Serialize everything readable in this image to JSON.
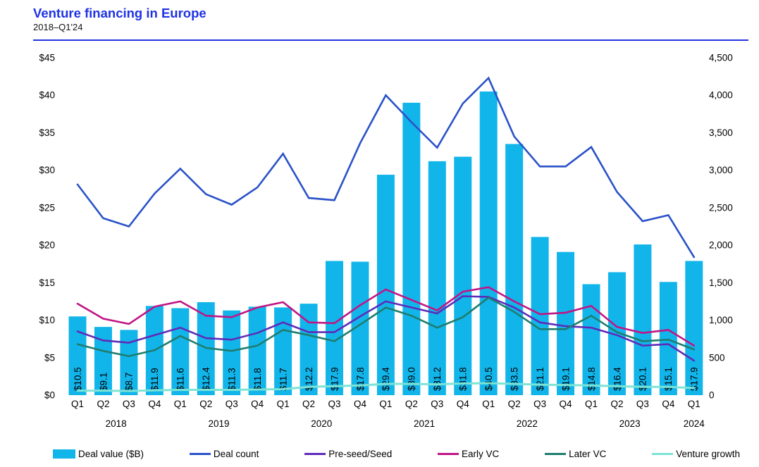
{
  "header": {
    "title": "Venture financing in Europe",
    "subtitle": "2018–Q1'24"
  },
  "colors": {
    "title_blue": "#1F32E3",
    "rule_blue": "#2135E0",
    "bar_cyan": "#12B5EA",
    "deal_count_blue": "#2A52C8",
    "preseed_purple": "#5E2BB8",
    "early_vc_magenta": "#C01585",
    "later_vc_teal": "#1F7D6F",
    "venture_growth_aqua": "#7CE3D5",
    "text_black": "#000000"
  },
  "chart_data": {
    "type": "bar",
    "subtype": "combo-bar-line-dual-axis",
    "title": "Venture financing in Europe",
    "subtitle": "2018–Q1'24",
    "grid": "off",
    "legend_position": "bottom",
    "categories": [
      "Q1",
      "Q2",
      "Q3",
      "Q4",
      "Q1",
      "Q2",
      "Q3",
      "Q4",
      "Q1",
      "Q2",
      "Q3",
      "Q4",
      "Q1",
      "Q2",
      "Q3",
      "Q4",
      "Q1",
      "Q2",
      "Q3",
      "Q4",
      "Q1",
      "Q2",
      "Q3",
      "Q4",
      "Q1"
    ],
    "year_groups": [
      {
        "label": "2018",
        "from": 0,
        "to": 3
      },
      {
        "label": "2019",
        "from": 4,
        "to": 7
      },
      {
        "label": "2020",
        "from": 8,
        "to": 11
      },
      {
        "label": "2021",
        "from": 12,
        "to": 15
      },
      {
        "label": "2022",
        "from": 16,
        "to": 19
      },
      {
        "label": "2023",
        "from": 20,
        "to": 23
      },
      {
        "label": "2024",
        "from": 24,
        "to": 24
      }
    ],
    "left_axis": {
      "max": 45,
      "min": 0,
      "tick_labels": [
        "$45",
        "$40",
        "$35",
        "$30",
        "$25",
        "$20",
        "$15",
        "$10",
        "$5",
        "$0"
      ]
    },
    "right_axis": {
      "max": 4500,
      "min": 0,
      "tick_labels": [
        "4,500",
        "4,000",
        "3,500",
        "3,000",
        "2,500",
        "2,000",
        "1,500",
        "1,000",
        "500",
        "0"
      ]
    },
    "bar_series": {
      "name": "Deal value ($B)",
      "axis": "left",
      "color": "#12B5EA",
      "values": [
        10.5,
        9.1,
        8.7,
        11.9,
        11.6,
        12.4,
        11.3,
        11.8,
        11.7,
        12.2,
        17.9,
        17.8,
        29.4,
        39.0,
        31.2,
        31.8,
        40.5,
        33.5,
        21.1,
        19.1,
        14.8,
        16.4,
        20.1,
        15.1,
        17.9
      ],
      "labels": [
        "$10.5",
        "$9.1",
        "$8.7",
        "$11.9",
        "$11.6",
        "$12.4",
        "$11.3",
        "$11.8",
        "$11.7",
        "$12.2",
        "$17.9",
        "$17.8",
        "$29.4",
        "$39.0",
        "$31.2",
        "$31.8",
        "$40.5",
        "$33.5",
        "$21.1",
        "$19.1",
        "$14.8",
        "$16.4",
        "$20.1",
        "$15.1",
        "$17.9"
      ]
    },
    "line_series": [
      {
        "name": "Deal count",
        "axis": "right",
        "color": "#2A52C8",
        "width": 2.6,
        "values": [
          2810,
          2360,
          2250,
          2690,
          3020,
          2680,
          2540,
          2770,
          3220,
          2630,
          2600,
          3360,
          4000,
          3640,
          3300,
          3890,
          4230,
          3450,
          3050,
          3050,
          3310,
          2710,
          2320,
          2400,
          1840
        ]
      },
      {
        "name": "Pre-seed/Seed",
        "axis": "right",
        "color": "#5E2BB8",
        "width": 2.6,
        "values": [
          850,
          730,
          700,
          800,
          900,
          760,
          740,
          830,
          970,
          840,
          840,
          1050,
          1250,
          1170,
          1090,
          1320,
          1310,
          1170,
          970,
          920,
          900,
          800,
          660,
          680,
          460
        ]
      },
      {
        "name": "Early VC",
        "axis": "right",
        "color": "#C01585",
        "width": 2.6,
        "values": [
          1220,
          1020,
          950,
          1180,
          1250,
          1060,
          1040,
          1170,
          1240,
          970,
          960,
          1200,
          1410,
          1270,
          1130,
          1380,
          1440,
          1250,
          1080,
          1100,
          1190,
          910,
          830,
          870,
          660
        ]
      },
      {
        "name": "Later VC",
        "axis": "right",
        "color": "#1F7D6F",
        "width": 2.6,
        "values": [
          680,
          590,
          520,
          600,
          790,
          630,
          590,
          660,
          870,
          800,
          720,
          940,
          1170,
          1060,
          900,
          1040,
          1300,
          1110,
          880,
          880,
          1060,
          840,
          720,
          740,
          610
        ]
      },
      {
        "name": "Venture growth",
        "axis": "right",
        "color": "#7CE3D5",
        "width": 3,
        "values": [
          60,
          60,
          55,
          65,
          70,
          70,
          70,
          75,
          80,
          110,
          120,
          130,
          150,
          150,
          145,
          155,
          160,
          150,
          140,
          135,
          130,
          120,
          110,
          110,
          95
        ]
      }
    ]
  },
  "legend": {
    "items": [
      {
        "label": "Deal value ($B)",
        "swatch": "bar",
        "color": "#12B5EA"
      },
      {
        "label": "Deal count",
        "swatch": "line",
        "color": "#2A52C8"
      },
      {
        "label": "Pre-seed/Seed",
        "swatch": "line",
        "color": "#5E2BB8"
      },
      {
        "label": "Early VC",
        "swatch": "line",
        "color": "#C01585"
      },
      {
        "label": "Later VC",
        "swatch": "line",
        "color": "#1F7D6F"
      },
      {
        "label": "Venture growth",
        "swatch": "line",
        "color": "#7CE3D5"
      }
    ]
  }
}
